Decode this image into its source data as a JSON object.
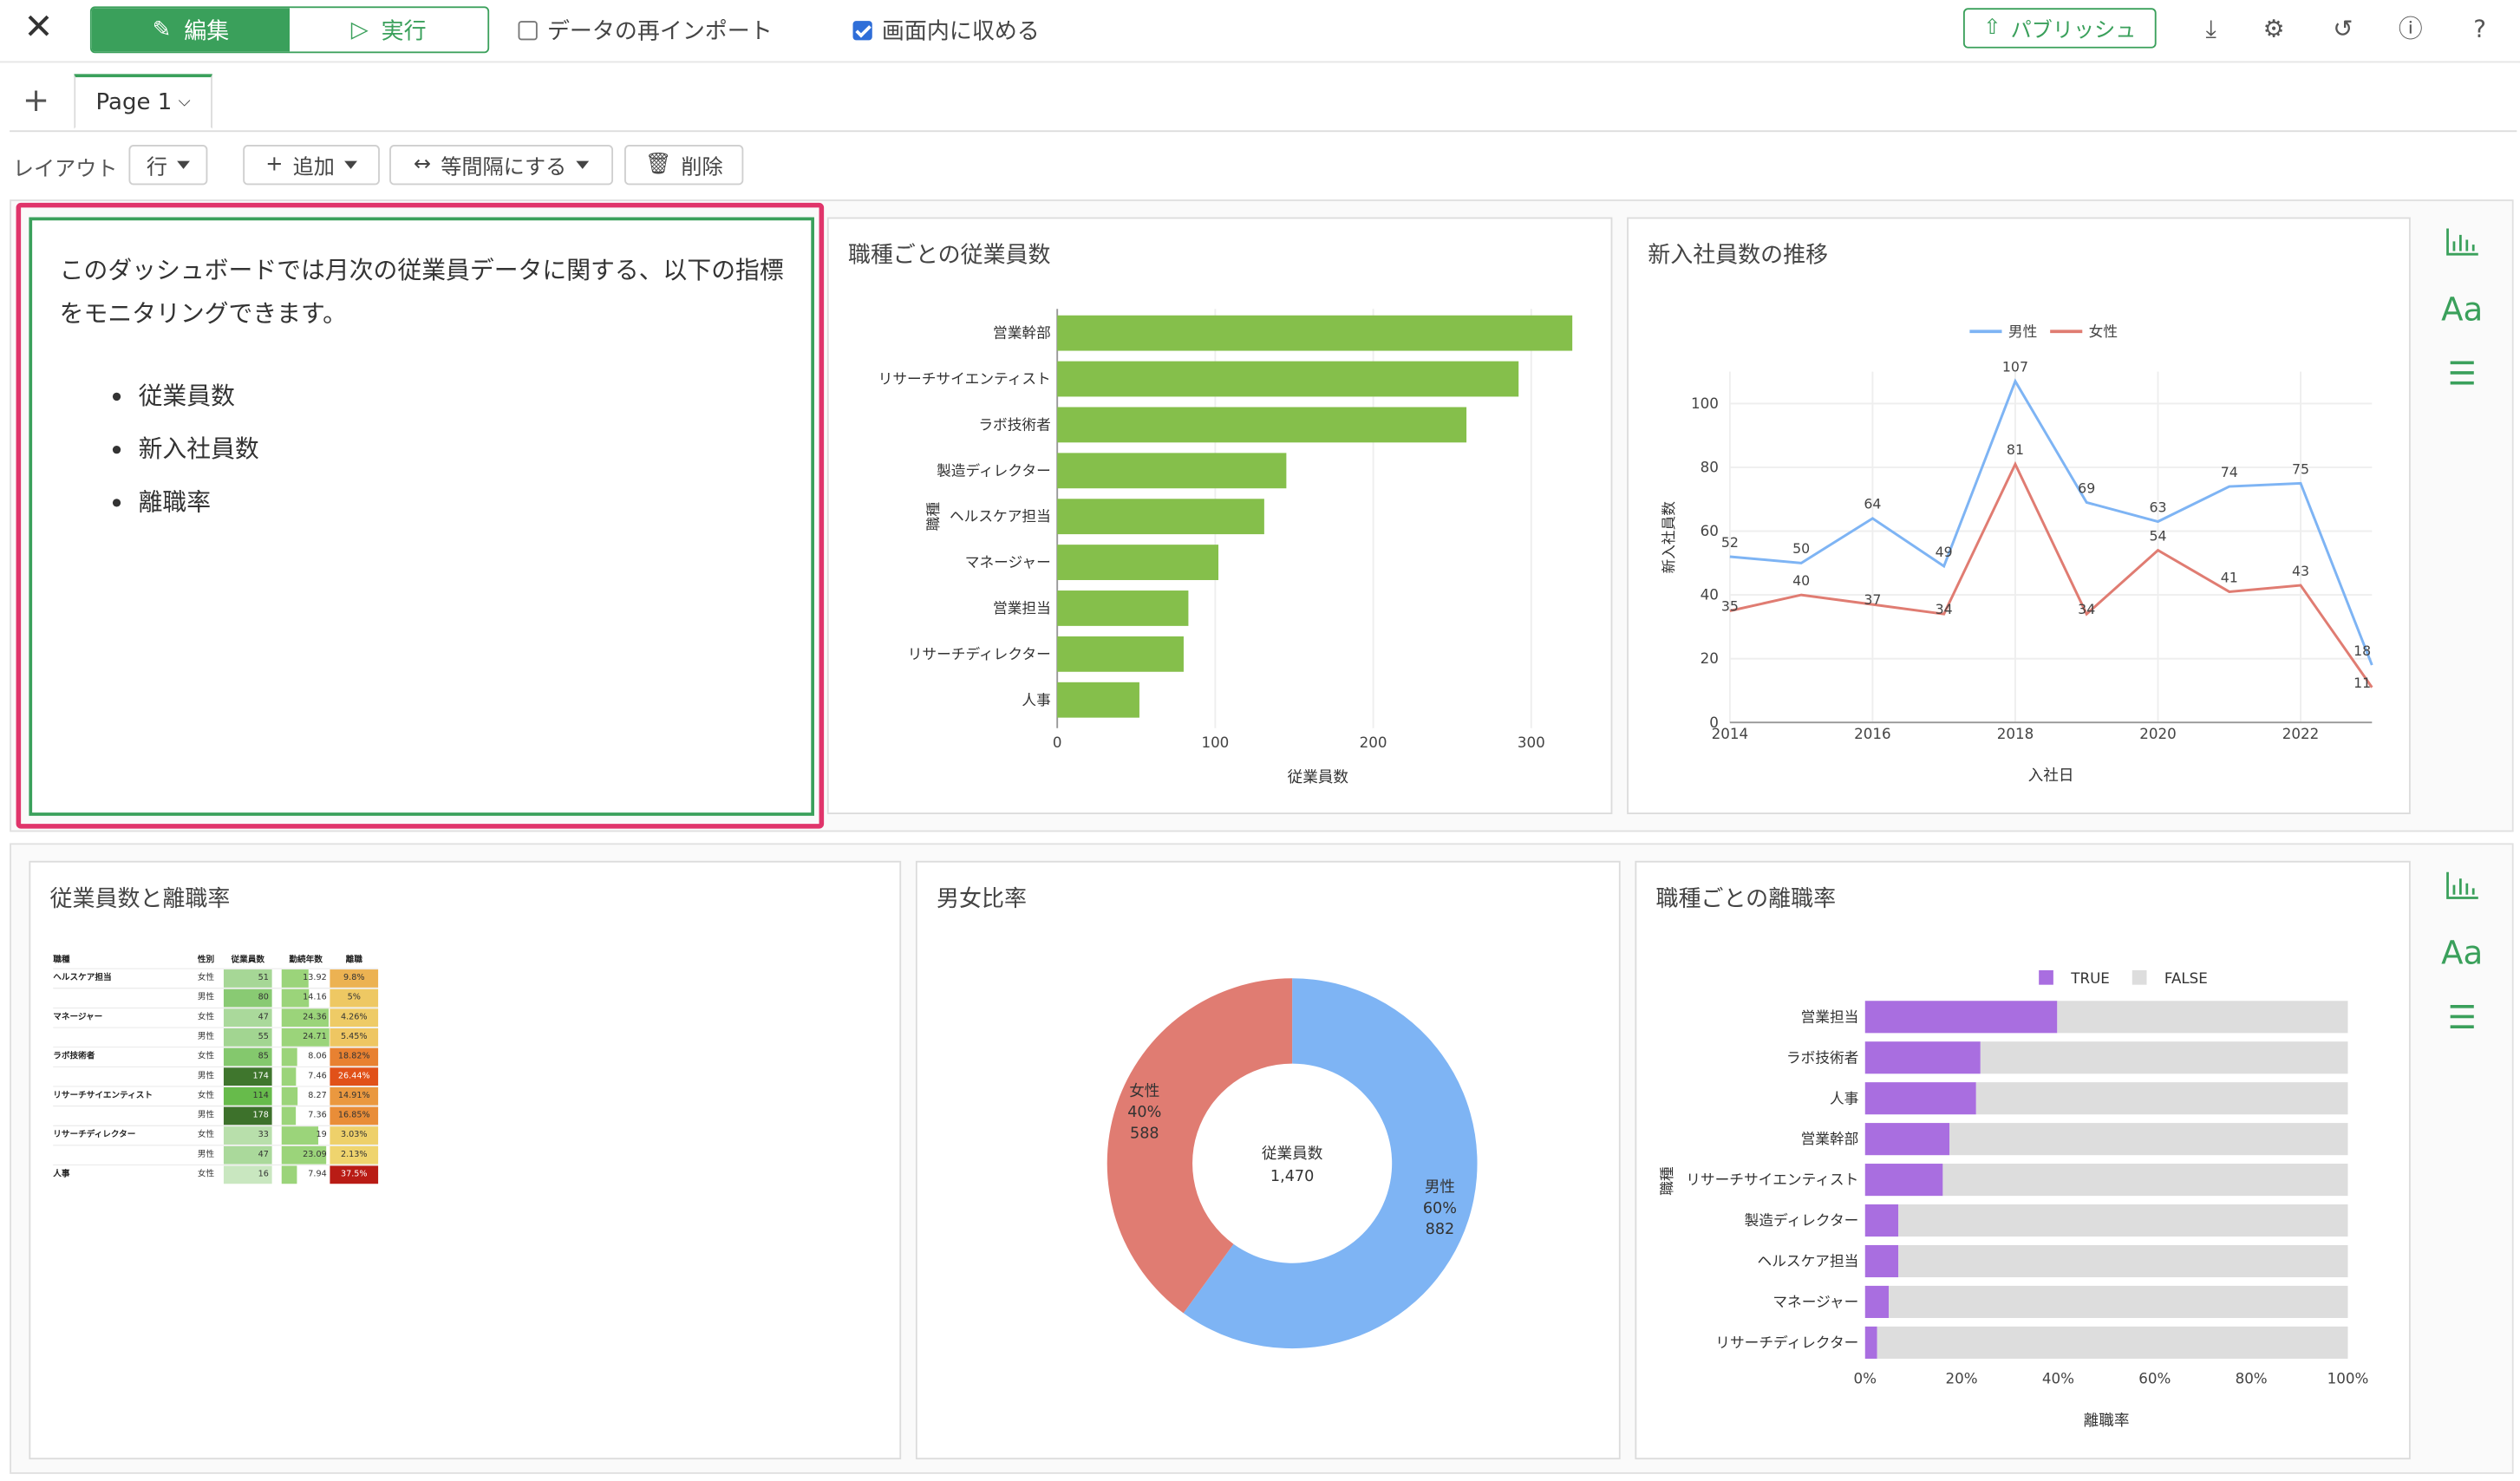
{
  "toolbar": {
    "edit_label": "編集",
    "run_label": "実行",
    "reimport_label": "データの再インポート",
    "fit_label": "画面内に収める",
    "publish_label": "パブリッシュ"
  },
  "tabs": {
    "page_label": "Page 1"
  },
  "layout": {
    "label": "レイアウト",
    "row_label": "行",
    "add_label": "追加",
    "equal_label": "等間隔にする",
    "delete_label": "削除"
  },
  "textcard": {
    "intro": "このダッシュボードでは月次の従業員データに関する、以下の指標をモニタリングできます。",
    "items": [
      "従業員数",
      "新入社員数",
      "離職率"
    ]
  },
  "cards": {
    "jobs_title": "職種ごとの従業員数",
    "trend_title": "新入社員数の推移",
    "table_title": "従業員数と離職率",
    "gender_title": "男女比率",
    "attrition_title": "職種ごとの離職率"
  },
  "side_icons": [
    "bar-chart-icon",
    "text-icon",
    "menu-icon"
  ],
  "colors": {
    "accent": "#3aa05b",
    "selection": "#e0356b",
    "bar_green": "#85bf4b",
    "male": "#7eb4f4",
    "female": "#e07c72",
    "purple": "#a96ee0",
    "gray": "#dddddd"
  },
  "chart_data": [
    {
      "id": "jobs",
      "type": "bar",
      "orientation": "horizontal",
      "title": "職種ごとの従業員数",
      "categories": [
        "営業幹部",
        "リサーチサイエンティスト",
        "ラボ技術者",
        "製造ディレクター",
        "ヘルスケア担当",
        "マネージャー",
        "営業担当",
        "リサーチディレクター",
        "人事"
      ],
      "values": [
        326,
        292,
        259,
        145,
        131,
        102,
        83,
        80,
        52
      ],
      "xlabel": "従業員数",
      "ylabel": "職種",
      "xlim": [
        0,
        330
      ],
      "xticks": [
        0,
        100,
        200,
        300
      ]
    },
    {
      "id": "trend",
      "type": "line",
      "title": "新入社員数の推移",
      "x": [
        2014,
        2015,
        2016,
        2017,
        2018,
        2019,
        2020,
        2021,
        2022,
        2023
      ],
      "series": [
        {
          "name": "男性",
          "values": [
            52,
            50,
            64,
            49,
            107,
            69,
            63,
            74,
            75,
            18
          ]
        },
        {
          "name": "女性",
          "values": [
            35,
            40,
            37,
            34,
            81,
            34,
            54,
            41,
            43,
            11
          ]
        }
      ],
      "xlabel": "入社日",
      "ylabel": "新入社員数",
      "ylim": [
        0,
        110
      ],
      "yticks": [
        0,
        20,
        40,
        60,
        80,
        100
      ],
      "xticks": [
        2014,
        2016,
        2018,
        2020,
        2022
      ],
      "legend": "top"
    },
    {
      "id": "gender",
      "type": "pie",
      "title": "男女比率",
      "center_label": "従業員数",
      "center_value": "1,470",
      "slices": [
        {
          "name": "男性",
          "pct": "60%",
          "value": 882
        },
        {
          "name": "女性",
          "pct": "40%",
          "value": 588
        }
      ]
    },
    {
      "id": "attrition",
      "type": "bar",
      "orientation": "horizontal",
      "stacked": true,
      "title": "職種ごとの離職率",
      "categories": [
        "営業担当",
        "ラボ技術者",
        "人事",
        "営業幹部",
        "リサーチサイエンティスト",
        "製造ディレクター",
        "ヘルスケア担当",
        "マネージャー",
        "リサーチディレクター"
      ],
      "series": [
        {
          "name": "TRUE",
          "values": [
            39.8,
            23.9,
            23.0,
            17.5,
            16.1,
            6.9,
            6.9,
            4.9,
            2.5
          ]
        },
        {
          "name": "FALSE",
          "values": [
            60.2,
            76.1,
            77.0,
            82.5,
            83.9,
            93.1,
            93.1,
            95.1,
            97.5
          ]
        }
      ],
      "xlabel": "離職率",
      "ylabel": "職種",
      "xticks": [
        "0%",
        "20%",
        "40%",
        "60%",
        "80%",
        "100%"
      ],
      "legend": "top"
    },
    {
      "id": "table",
      "type": "table",
      "title": "従業員数と離職率",
      "columns": [
        "職種",
        "性別",
        "従業員数",
        "勤続年数",
        "離職"
      ],
      "rows": [
        [
          "ヘルスケア担当",
          "女性",
          51,
          13.92,
          "9.8%"
        ],
        [
          "",
          "男性",
          80,
          14.16,
          "5%"
        ],
        [
          "マネージャー",
          "女性",
          47,
          24.36,
          "4.26%"
        ],
        [
          "",
          "男性",
          55,
          24.71,
          "5.45%"
        ],
        [
          "ラボ技術者",
          "女性",
          85,
          8.06,
          "18.82%"
        ],
        [
          "",
          "男性",
          174,
          7.46,
          "26.44%"
        ],
        [
          "リサーチサイエンティスト",
          "女性",
          114,
          8.27,
          "14.91%"
        ],
        [
          "",
          "男性",
          178,
          7.36,
          "16.85%"
        ],
        [
          "リサーチディレクター",
          "女性",
          33,
          19,
          "3.03%"
        ],
        [
          "",
          "男性",
          47,
          23.09,
          "2.13%"
        ],
        [
          "人事",
          "女性",
          16,
          7.94,
          "37.5%"
        ]
      ]
    }
  ]
}
